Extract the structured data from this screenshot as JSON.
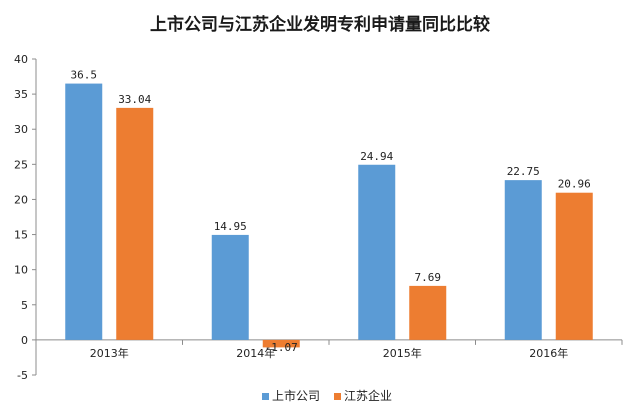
{
  "chart_data": {
    "type": "bar",
    "title": "上市公司与江苏企业发明专利申请量同比比较",
    "categories": [
      "2013年",
      "2014年",
      "2015年",
      "2016年"
    ],
    "series": [
      {
        "name": "上市公司",
        "color": "#5b9bd5",
        "values": [
          36.5,
          14.95,
          24.94,
          22.75
        ],
        "labels": [
          "36.5",
          "14.95",
          "24.94",
          "22.75"
        ]
      },
      {
        "name": "江苏企业",
        "color": "#ed7d31",
        "values": [
          33.04,
          -1.07,
          7.69,
          20.96
        ],
        "labels": [
          "33.04",
          "-1.07",
          "7.69",
          "20.96"
        ]
      }
    ],
    "ylim": [
      -5,
      40
    ],
    "yticks": [
      -5,
      0,
      5,
      10,
      15,
      20,
      25,
      30,
      35,
      40
    ],
    "xlabel": "",
    "ylabel": "",
    "grid": false,
    "legend": "bottom"
  }
}
